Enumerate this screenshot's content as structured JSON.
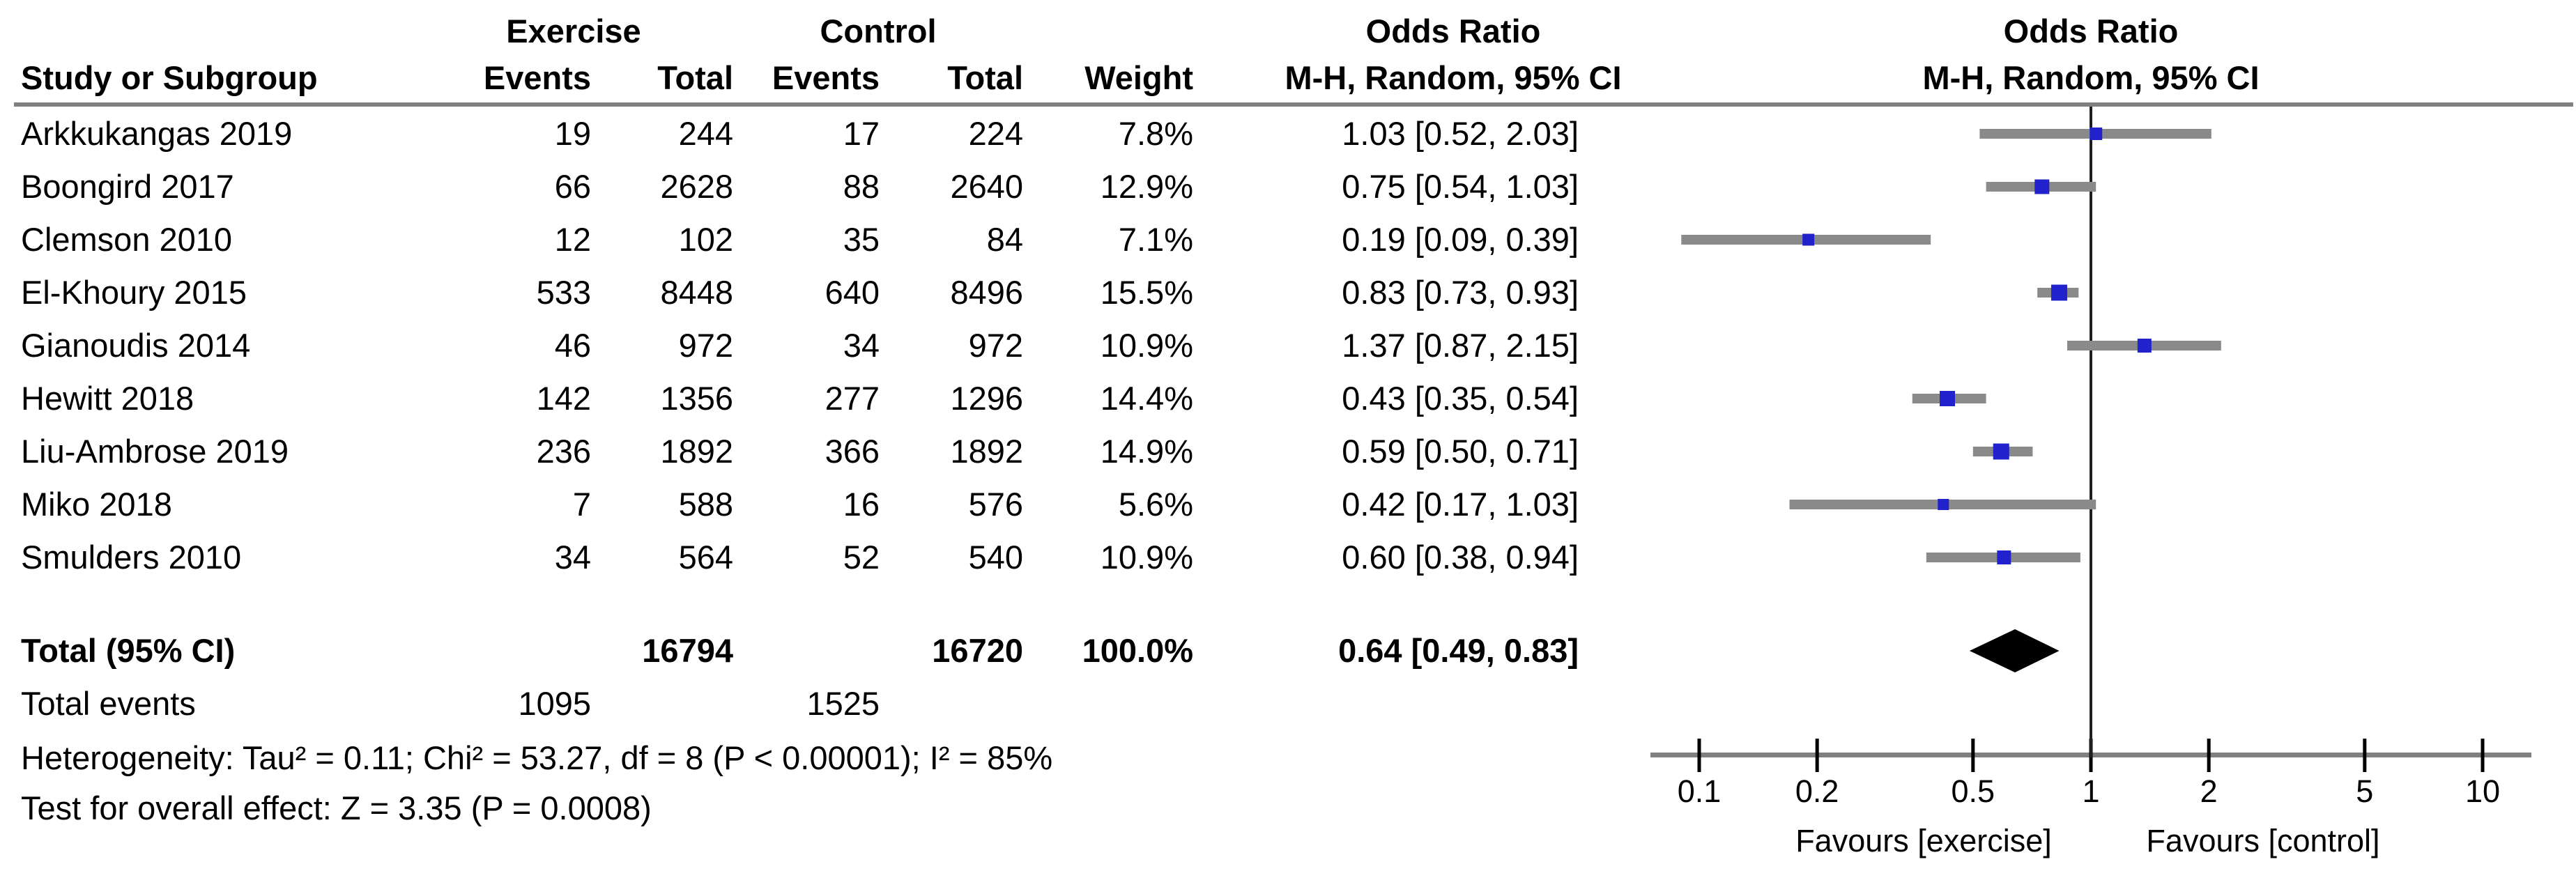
{
  "table": {
    "group1_header": "Exercise",
    "group2_header": "Control",
    "or_header": "Odds Ratio",
    "mh_header": "M-H, Random, 95% CI",
    "col_headers": {
      "study": "Study or Subgroup",
      "events": "Events",
      "total": "Total",
      "weight": "Weight"
    },
    "studies": [
      {
        "name": "Arkkukangas 2019",
        "exercise_events": "19",
        "exercise_total": "244",
        "control_events": "17",
        "control_total": "224",
        "weight": "7.8%",
        "weight_value": 7.8,
        "or_text": "1.03 [0.52, 2.03]",
        "or": 1.03,
        "ci_low": 0.52,
        "ci_high": 2.03
      },
      {
        "name": "Boongird 2017",
        "exercise_events": "66",
        "exercise_total": "2628",
        "control_events": "88",
        "control_total": "2640",
        "weight": "12.9%",
        "weight_value": 12.9,
        "or_text": "0.75 [0.54, 1.03]",
        "or": 0.75,
        "ci_low": 0.54,
        "ci_high": 1.03
      },
      {
        "name": "Clemson 2010",
        "exercise_events": "12",
        "exercise_total": "102",
        "control_events": "35",
        "control_total": "84",
        "weight": "7.1%",
        "weight_value": 7.1,
        "or_text": "0.19 [0.09, 0.39]",
        "or": 0.19,
        "ci_low": 0.09,
        "ci_high": 0.39
      },
      {
        "name": "El-Khoury 2015",
        "exercise_events": "533",
        "exercise_total": "8448",
        "control_events": "640",
        "control_total": "8496",
        "weight": "15.5%",
        "weight_value": 15.5,
        "or_text": "0.83 [0.73, 0.93]",
        "or": 0.83,
        "ci_low": 0.73,
        "ci_high": 0.93
      },
      {
        "name": "Gianoudis 2014",
        "exercise_events": "46",
        "exercise_total": "972",
        "control_events": "34",
        "control_total": "972",
        "weight": "10.9%",
        "weight_value": 10.9,
        "or_text": "1.37 [0.87, 2.15]",
        "or": 1.37,
        "ci_low": 0.87,
        "ci_high": 2.15
      },
      {
        "name": "Hewitt 2018",
        "exercise_events": "142",
        "exercise_total": "1356",
        "control_events": "277",
        "control_total": "1296",
        "weight": "14.4%",
        "weight_value": 14.4,
        "or_text": "0.43 [0.35, 0.54]",
        "or": 0.43,
        "ci_low": 0.35,
        "ci_high": 0.54
      },
      {
        "name": "Liu-Ambrose 2019",
        "exercise_events": "236",
        "exercise_total": "1892",
        "control_events": "366",
        "control_total": "1892",
        "weight": "14.9%",
        "weight_value": 14.9,
        "or_text": "0.59 [0.50, 0.71]",
        "or": 0.59,
        "ci_low": 0.5,
        "ci_high": 0.71
      },
      {
        "name": "Miko 2018",
        "exercise_events": "7",
        "exercise_total": "588",
        "control_events": "16",
        "control_total": "576",
        "weight": "5.6%",
        "weight_value": 5.6,
        "or_text": "0.42 [0.17, 1.03]",
        "or": 0.42,
        "ci_low": 0.17,
        "ci_high": 1.03
      },
      {
        "name": "Smulders 2010",
        "exercise_events": "34",
        "exercise_total": "564",
        "control_events": "52",
        "control_total": "540",
        "weight": "10.9%",
        "weight_value": 10.9,
        "or_text": "0.60 [0.38, 0.94]",
        "or": 0.6,
        "ci_low": 0.38,
        "ci_high": 0.94
      }
    ],
    "total_row": {
      "label": "Total (95% CI)",
      "exercise_total": "16794",
      "control_total": "16720",
      "weight": "100.0%",
      "or_text": "0.64 [0.49, 0.83]",
      "or": 0.64,
      "ci_low": 0.49,
      "ci_high": 0.83
    },
    "total_events": {
      "label": "Total events",
      "exercise": "1095",
      "control": "1525"
    },
    "heterogeneity": "Heterogeneity: Tau² = 0.11; Chi² = 53.27, df = 8 (P < 0.00001); I² = 85%",
    "overall_effect": "Test for overall effect: Z = 3.35 (P = 0.0008)"
  },
  "plot": {
    "axis_ticks": [
      0.1,
      0.2,
      0.5,
      1,
      2,
      5,
      10
    ],
    "tick_labels": [
      "0.1",
      "0.2",
      "0.5",
      "1",
      "2",
      "5",
      "10"
    ],
    "reference_value": 1,
    "favours_left": "Favours [exercise]",
    "favours_right": "Favours [control]",
    "colors": {
      "marker": "#2222CC",
      "ci_bar": "#8A8A8A",
      "diamond": "#000000",
      "axis": "#808080",
      "ref_line": "#1F1F1F",
      "rule": "#7F7F7F",
      "tick": "#000000"
    }
  },
  "chart_data": {
    "type": "scatter",
    "subtype": "forest-plot-meta-analysis",
    "title": "Odds Ratio M-H, Random, 95% CI",
    "x_scale": "log10",
    "x_ticks": [
      0.1,
      0.2,
      0.5,
      1,
      2,
      5,
      10
    ],
    "xlim": [
      0.1,
      10
    ],
    "reference_line": 1,
    "axis_label_left": "Favours [exercise]",
    "axis_label_right": "Favours [control]",
    "series": [
      {
        "name": "Arkkukangas 2019",
        "or": 1.03,
        "ci": [
          0.52,
          2.03
        ],
        "weight_pct": 7.8,
        "exercise_events": 19,
        "exercise_total": 244,
        "control_events": 17,
        "control_total": 224
      },
      {
        "name": "Boongird 2017",
        "or": 0.75,
        "ci": [
          0.54,
          1.03
        ],
        "weight_pct": 12.9,
        "exercise_events": 66,
        "exercise_total": 2628,
        "control_events": 88,
        "control_total": 2640
      },
      {
        "name": "Clemson 2010",
        "or": 0.19,
        "ci": [
          0.09,
          0.39
        ],
        "weight_pct": 7.1,
        "exercise_events": 12,
        "exercise_total": 102,
        "control_events": 35,
        "control_total": 84
      },
      {
        "name": "El-Khoury 2015",
        "or": 0.83,
        "ci": [
          0.73,
          0.93
        ],
        "weight_pct": 15.5,
        "exercise_events": 533,
        "exercise_total": 8448,
        "control_events": 640,
        "control_total": 8496
      },
      {
        "name": "Gianoudis 2014",
        "or": 1.37,
        "ci": [
          0.87,
          2.15
        ],
        "weight_pct": 10.9,
        "exercise_events": 46,
        "exercise_total": 972,
        "control_events": 34,
        "control_total": 972
      },
      {
        "name": "Hewitt 2018",
        "or": 0.43,
        "ci": [
          0.35,
          0.54
        ],
        "weight_pct": 14.4,
        "exercise_events": 142,
        "exercise_total": 1356,
        "control_events": 277,
        "control_total": 1296
      },
      {
        "name": "Liu-Ambrose 2019",
        "or": 0.59,
        "ci": [
          0.5,
          0.71
        ],
        "weight_pct": 14.9,
        "exercise_events": 236,
        "exercise_total": 1892,
        "control_events": 366,
        "control_total": 1892
      },
      {
        "name": "Miko 2018",
        "or": 0.42,
        "ci": [
          0.17,
          1.03
        ],
        "weight_pct": 5.6,
        "exercise_events": 7,
        "exercise_total": 588,
        "control_events": 16,
        "control_total": 576
      },
      {
        "name": "Smulders 2010",
        "or": 0.6,
        "ci": [
          0.38,
          0.94
        ],
        "weight_pct": 10.9,
        "exercise_events": 34,
        "exercise_total": 564,
        "control_events": 52,
        "control_total": 540
      }
    ],
    "pooled": {
      "name": "Total (95% CI)",
      "or": 0.64,
      "ci": [
        0.49,
        0.83
      ],
      "weight_pct": 100.0,
      "exercise_total": 16794,
      "control_total": 16720,
      "heterogeneity": "Tau² = 0.11; Chi² = 53.27, df = 8 (P < 0.00001); I² = 85%",
      "overall_effect": "Z = 3.35 (P = 0.0008)",
      "total_events_exercise": 1095,
      "total_events_control": 1525
    }
  }
}
